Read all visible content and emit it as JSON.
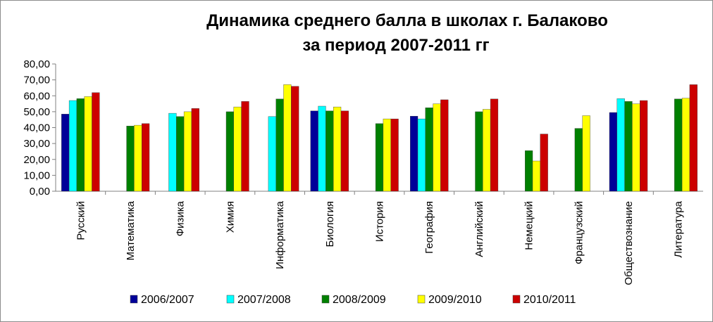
{
  "chart_data": {
    "type": "bar",
    "title_lines": [
      "Динамика среднего балла  в школах г. Балаково",
      "за период 2007-2011 гг"
    ],
    "ylim": [
      0,
      80
    ],
    "yticks": [
      "0,00",
      "10,00",
      "20,00",
      "30,00",
      "40,00",
      "50,00",
      "60,00",
      "70,00",
      "80,00"
    ],
    "grid": false,
    "legend_position": "bottom",
    "categories": [
      "Русский",
      "Математика",
      "Физика",
      "Химия",
      "Информатика",
      "Биология",
      "История",
      "География",
      "Английский",
      "Немецкий",
      "Французский",
      "Обществознание",
      "Литература"
    ],
    "series": [
      {
        "name": "2006/2007",
        "color": "#000099",
        "values": [
          48.5,
          null,
          null,
          null,
          null,
          50.5,
          null,
          47.2,
          null,
          null,
          null,
          49.5,
          null
        ]
      },
      {
        "name": "2007/2008",
        "color": "#00ffff",
        "values": [
          57.0,
          null,
          49.0,
          null,
          47.0,
          53.5,
          null,
          45.5,
          null,
          null,
          null,
          58.2,
          null
        ]
      },
      {
        "name": "2008/2009",
        "color": "#008000",
        "values": [
          58.2,
          41.0,
          47.0,
          50.0,
          58.0,
          50.5,
          42.5,
          52.5,
          50.0,
          25.5,
          39.5,
          56.5,
          58.0
        ]
      },
      {
        "name": "2009/2010",
        "color": "#ffff00",
        "values": [
          59.5,
          41.5,
          50.0,
          53.0,
          67.0,
          53.0,
          45.5,
          55.0,
          51.5,
          19.0,
          47.5,
          55.0,
          58.5
        ]
      },
      {
        "name": "2010/2011",
        "color": "#cc0000",
        "values": [
          62.0,
          42.5,
          52.0,
          56.5,
          66.0,
          50.5,
          45.5,
          57.5,
          58.0,
          36.0,
          null,
          57.0,
          67.0
        ]
      }
    ]
  }
}
